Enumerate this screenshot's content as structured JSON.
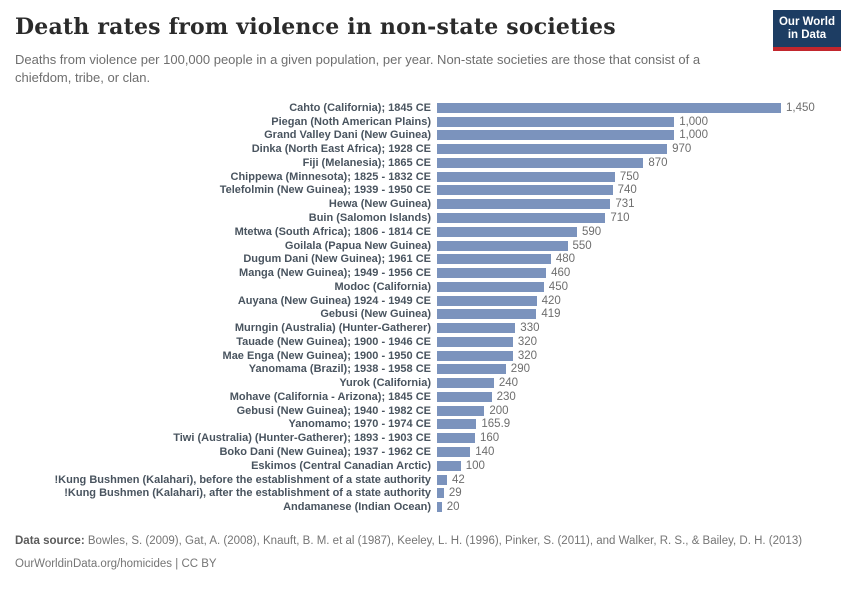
{
  "header": {
    "title": "Death rates from violence in non-state societies",
    "subtitle": "Deaths from violence per 100,000 people in a given population, per year. Non-state societies are those that consist of a chiefdom, tribe, or clan.",
    "logo_line1": "Our World",
    "logo_line2": "in Data"
  },
  "chart_data": {
    "type": "bar",
    "orientation": "horizontal",
    "title": "Death rates from violence in non-state societies",
    "xlabel": "Deaths from violence per 100,000 people per year",
    "ylabel": "",
    "xlim": [
      0,
      1450
    ],
    "grid": false,
    "bar_color": "#7b93bd",
    "categories": [
      "Cahto (California); 1845 CE",
      "Piegan (Noth American Plains)",
      "Grand Valley Dani (New Guinea)",
      "Dinka (North East Africa); 1928 CE",
      "Fiji (Melanesia); 1865 CE",
      "Chippewa (Minnesota); 1825 - 1832 CE",
      "Telefolmin (New Guinea); 1939 - 1950 CE",
      "Hewa (New Guinea)",
      "Buin (Salomon Islands)",
      "Mtetwa (South Africa); 1806 - 1814 CE",
      "Goilala (Papua New Guinea)",
      "Dugum Dani (New Guinea); 1961 CE",
      "Manga (New Guinea); 1949 - 1956 CE",
      "Modoc (California)",
      "Auyana (New Guinea) 1924 - 1949 CE",
      "Gebusi (New Guinea)",
      "Murngin (Australia) (Hunter-Gatherer)",
      "Tauade (New Guinea); 1900 - 1946 CE",
      "Mae Enga (New Guinea); 1900 - 1950 CE",
      "Yanomama (Brazil); 1938 - 1958 CE",
      "Yurok (California)",
      "Mohave (California - Arizona); 1845 CE",
      "Gebusi (New Guinea); 1940 - 1982 CE",
      "Yanomamo; 1970 - 1974 CE",
      "Tiwi (Australia) (Hunter-Gatherer); 1893 - 1903 CE",
      "Boko Dani (New Guinea); 1937 - 1962 CE",
      "Eskimos (Central Canadian Arctic)",
      "!Kung Bushmen (Kalahari), before the establishment of a state authority",
      "!Kung Bushmen (Kalahari), after the establishment of a state authority",
      "Andamanese (Indian Ocean)"
    ],
    "values": [
      1450,
      1000,
      1000,
      970,
      870,
      750,
      740,
      731,
      710,
      590,
      550,
      480,
      460,
      450,
      420,
      419,
      330,
      320,
      320,
      290,
      240,
      230,
      200,
      165.9,
      160,
      140,
      100,
      42,
      29,
      20
    ],
    "value_labels": [
      "1,450",
      "1,000",
      "1,000",
      "970",
      "870",
      "750",
      "740",
      "731",
      "710",
      "590",
      "550",
      "480",
      "460",
      "450",
      "420",
      "419",
      "330",
      "320",
      "320",
      "290",
      "240",
      "230",
      "200",
      "165.9",
      "160",
      "140",
      "100",
      "42",
      "29",
      "20"
    ]
  },
  "footer": {
    "source_label": "Data source:",
    "source_text": "Bowles, S. (2009), Gat, A. (2008), Knauft, B. M. et al (1987), Keeley, L. H. (1996), Pinker, S. (2011), and Walker, R. S., & Bailey, D. H. (2013)",
    "link": "OurWorldinData.org/homicides",
    "separator": "|",
    "license": "CC BY"
  }
}
